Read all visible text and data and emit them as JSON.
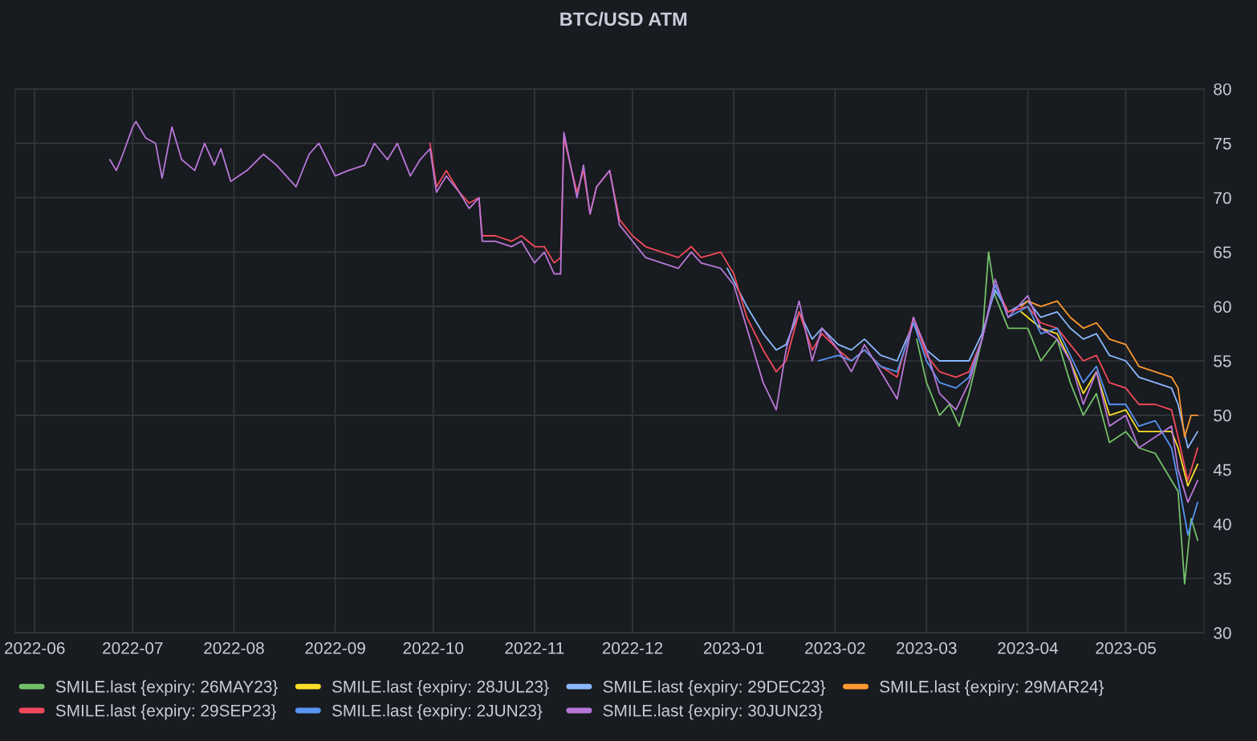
{
  "chart_data": {
    "type": "line",
    "title": "BTC/USD ATM",
    "xlim": [
      "2022-05-26",
      "2023-05-25"
    ],
    "ylim": [
      30,
      80
    ],
    "xticks": [
      "2022-06",
      "2022-07",
      "2022-08",
      "2022-09",
      "2022-10",
      "2022-11",
      "2022-12",
      "2023-01",
      "2023-02",
      "2023-03",
      "2023-04",
      "2023-05"
    ],
    "yticks": [
      30,
      35,
      40,
      45,
      50,
      55,
      60,
      65,
      70,
      75,
      80
    ],
    "grid": true,
    "legend": "bottom",
    "marker": "none",
    "line_style": "solid",
    "series": [
      {
        "name": "SMILE.last {expiry: 26MAY23}",
        "color": "#73bf69",
        "x": [
          "2023-02-26",
          "2023-03-01",
          "2023-03-05",
          "2023-03-08",
          "2023-03-11",
          "2023-03-14",
          "2023-03-18",
          "2023-03-20",
          "2023-03-22",
          "2023-03-26",
          "2023-04-01",
          "2023-04-05",
          "2023-04-10",
          "2023-04-14",
          "2023-04-18",
          "2023-04-22",
          "2023-04-26",
          "2023-05-01",
          "2023-05-05",
          "2023-05-10",
          "2023-05-15",
          "2023-05-17",
          "2023-05-19",
          "2023-05-21",
          "2023-05-23"
        ],
        "values": [
          57,
          53,
          50,
          51,
          49,
          52,
          57,
          65,
          61,
          58,
          58,
          55,
          57,
          53,
          50,
          52,
          47.5,
          48.5,
          47,
          46.5,
          44,
          43,
          34.5,
          40.5,
          38.5
        ]
      },
      {
        "name": "SMILE.last {expiry: 28JUL23}",
        "color": "#fade2a",
        "x": [
          "2023-03-30",
          "2023-04-05",
          "2023-04-10",
          "2023-04-14",
          "2023-04-18",
          "2023-04-22",
          "2023-04-26",
          "2023-05-01",
          "2023-05-05",
          "2023-05-10",
          "2023-05-15",
          "2023-05-17",
          "2023-05-20",
          "2023-05-23"
        ],
        "values": [
          59.5,
          58,
          57.5,
          55,
          52,
          54,
          50,
          50.5,
          48.5,
          48.5,
          48.5,
          47,
          43.5,
          45.5
        ]
      },
      {
        "name": "SMILE.last {expiry: 29DEC23}",
        "color": "#8ab8ff",
        "x": [
          "2022-12-30",
          "2023-01-05",
          "2023-01-10",
          "2023-01-14",
          "2023-01-17",
          "2023-01-21",
          "2023-01-25",
          "2023-01-28",
          "2023-02-02",
          "2023-02-06",
          "2023-02-10",
          "2023-02-15",
          "2023-02-20",
          "2023-02-25",
          "2023-03-01",
          "2023-03-05",
          "2023-03-10",
          "2023-03-14",
          "2023-03-18",
          "2023-03-22",
          "2023-03-26",
          "2023-04-01",
          "2023-04-05",
          "2023-04-10",
          "2023-04-14",
          "2023-04-18",
          "2023-04-22",
          "2023-04-26",
          "2023-05-01",
          "2023-05-05",
          "2023-05-10",
          "2023-05-15",
          "2023-05-17",
          "2023-05-20",
          "2023-05-23"
        ],
        "values": [
          63.5,
          60,
          57.5,
          56,
          56.5,
          59.5,
          57,
          58,
          56.5,
          56,
          57,
          55.5,
          55,
          58.5,
          56,
          55,
          55,
          55,
          57.5,
          61.5,
          59.5,
          60.5,
          59,
          59.5,
          58,
          57,
          57.5,
          55.5,
          55,
          53.5,
          53,
          52.5,
          51,
          47,
          48.5
        ]
      },
      {
        "name": "SMILE.last {expiry: 29MAR24}",
        "color": "#ff9830",
        "x": [
          "2023-03-30",
          "2023-04-01",
          "2023-04-05",
          "2023-04-10",
          "2023-04-14",
          "2023-04-18",
          "2023-04-22",
          "2023-04-26",
          "2023-05-01",
          "2023-05-05",
          "2023-05-10",
          "2023-05-15",
          "2023-05-17",
          "2023-05-19",
          "2023-05-21",
          "2023-05-23"
        ],
        "values": [
          60,
          60.5,
          60,
          60.5,
          59,
          58,
          58.5,
          57,
          56.5,
          54.5,
          54,
          53.5,
          52.5,
          48,
          50,
          50
        ]
      },
      {
        "name": "SMILE.last {expiry: 29SEP23}",
        "color": "#f2495c",
        "x": [
          "2022-09-30",
          "2022-10-02",
          "2022-10-05",
          "2022-10-09",
          "2022-10-12",
          "2022-10-15",
          "2022-10-16",
          "2022-10-20",
          "2022-10-25",
          "2022-10-28",
          "2022-11-01",
          "2022-11-04",
          "2022-11-07",
          "2022-11-09",
          "2022-11-10",
          "2022-11-14",
          "2022-11-16",
          "2022-11-18",
          "2022-11-20",
          "2022-11-24",
          "2022-11-27",
          "2022-12-01",
          "2022-12-05",
          "2022-12-10",
          "2022-12-15",
          "2022-12-19",
          "2022-12-22",
          "2022-12-28",
          "2023-01-01",
          "2023-01-05",
          "2023-01-10",
          "2023-01-14",
          "2023-01-17",
          "2023-01-21",
          "2023-01-25",
          "2023-01-28",
          "2023-02-02",
          "2023-02-06",
          "2023-02-10",
          "2023-02-15",
          "2023-02-20",
          "2023-02-25",
          "2023-03-01",
          "2023-03-05",
          "2023-03-10",
          "2023-03-14",
          "2023-03-18",
          "2023-03-22",
          "2023-03-26",
          "2023-04-01",
          "2023-04-05",
          "2023-04-10",
          "2023-04-14",
          "2023-04-18",
          "2023-04-22",
          "2023-04-26",
          "2023-05-01",
          "2023-05-05",
          "2023-05-10",
          "2023-05-15",
          "2023-05-17",
          "2023-05-20",
          "2023-05-23"
        ],
        "values": [
          75,
          71,
          72.5,
          70.5,
          69.5,
          70,
          66.5,
          66.5,
          66,
          66.5,
          65.5,
          65.5,
          64,
          64.5,
          75.5,
          70.5,
          72.5,
          68.5,
          71,
          72.5,
          68,
          66.5,
          65.5,
          65,
          64.5,
          65.5,
          64.5,
          65,
          63,
          59,
          56,
          54,
          55,
          59.5,
          56,
          57.5,
          56,
          55,
          56,
          54.5,
          53.5,
          59,
          55.5,
          54,
          53.5,
          54,
          57,
          62,
          59.5,
          60,
          58.5,
          58,
          56.5,
          55,
          55.5,
          53,
          52.5,
          51,
          51,
          50.5,
          48,
          44,
          47
        ]
      },
      {
        "name": "SMILE.last {expiry: 2JUN23}",
        "color": "#5794f2",
        "x": [
          "2023-01-27",
          "2023-02-02",
          "2023-02-06",
          "2023-02-10",
          "2023-02-15",
          "2023-02-20",
          "2023-02-25",
          "2023-03-01",
          "2023-03-05",
          "2023-03-10",
          "2023-03-14",
          "2023-03-18",
          "2023-03-22",
          "2023-03-26",
          "2023-04-01",
          "2023-04-05",
          "2023-04-10",
          "2023-04-14",
          "2023-04-18",
          "2023-04-22",
          "2023-04-26",
          "2023-05-01",
          "2023-05-05",
          "2023-05-10",
          "2023-05-15",
          "2023-05-17",
          "2023-05-20",
          "2023-05-23"
        ],
        "values": [
          55,
          55.5,
          55,
          56,
          54.5,
          54,
          58.5,
          55,
          53,
          52.5,
          53.5,
          57,
          62,
          59,
          60,
          57.5,
          58,
          55.5,
          53,
          54.5,
          51,
          51,
          49,
          49.5,
          47,
          44,
          39,
          42
        ]
      },
      {
        "name": "SMILE.last {expiry: 30JUN23}",
        "color": "#b877d9",
        "x": [
          "2022-06-24",
          "2022-06-26",
          "2022-06-28",
          "2022-07-01",
          "2022-07-02",
          "2022-07-05",
          "2022-07-08",
          "2022-07-10",
          "2022-07-13",
          "2022-07-16",
          "2022-07-20",
          "2022-07-23",
          "2022-07-26",
          "2022-07-28",
          "2022-07-31",
          "2022-08-05",
          "2022-08-10",
          "2022-08-14",
          "2022-08-20",
          "2022-08-24",
          "2022-08-27",
          "2022-09-01",
          "2022-09-05",
          "2022-09-10",
          "2022-09-13",
          "2022-09-17",
          "2022-09-20",
          "2022-09-24",
          "2022-09-27",
          "2022-09-30",
          "2022-10-02",
          "2022-10-05",
          "2022-10-09",
          "2022-10-12",
          "2022-10-15",
          "2022-10-16",
          "2022-10-20",
          "2022-10-25",
          "2022-10-28",
          "2022-11-01",
          "2022-11-04",
          "2022-11-07",
          "2022-11-09",
          "2022-11-10",
          "2022-11-14",
          "2022-11-16",
          "2022-11-18",
          "2022-11-20",
          "2022-11-24",
          "2022-11-27",
          "2022-12-01",
          "2022-12-05",
          "2022-12-10",
          "2022-12-15",
          "2022-12-19",
          "2022-12-22",
          "2022-12-28",
          "2023-01-01",
          "2023-01-05",
          "2023-01-10",
          "2023-01-14",
          "2023-01-17",
          "2023-01-21",
          "2023-01-25",
          "2023-01-28",
          "2023-02-02",
          "2023-02-06",
          "2023-02-10",
          "2023-02-15",
          "2023-02-20",
          "2023-02-25",
          "2023-03-01",
          "2023-03-05",
          "2023-03-10",
          "2023-03-14",
          "2023-03-18",
          "2023-03-22",
          "2023-03-26",
          "2023-04-01",
          "2023-04-05",
          "2023-04-10",
          "2023-04-14",
          "2023-04-18",
          "2023-04-22",
          "2023-04-26",
          "2023-05-01",
          "2023-05-05",
          "2023-05-10",
          "2023-05-15",
          "2023-05-17",
          "2023-05-20",
          "2023-05-23"
        ],
        "values": [
          73.5,
          72.5,
          74,
          76.5,
          77,
          75.5,
          75,
          71.8,
          76.5,
          73.5,
          72.5,
          75,
          73,
          74.5,
          71.5,
          72.5,
          74,
          73,
          71,
          74,
          75,
          72,
          72.5,
          73,
          75,
          73.5,
          75,
          72,
          73.5,
          74.5,
          70.5,
          72,
          70.5,
          69,
          70,
          66,
          66,
          65.5,
          66,
          64,
          65,
          63,
          63,
          76,
          70,
          73,
          68.5,
          71,
          72.5,
          67.5,
          66,
          64.5,
          64,
          63.5,
          65,
          64,
          63.5,
          62,
          58,
          53,
          50.5,
          56,
          60.5,
          55,
          58,
          56,
          54,
          56.5,
          54,
          51.5,
          59,
          56,
          52,
          50.5,
          53,
          57,
          62.5,
          59,
          61,
          58,
          57,
          55,
          51,
          54,
          49,
          50,
          47,
          48,
          49,
          45,
          42,
          44
        ]
      }
    ]
  }
}
